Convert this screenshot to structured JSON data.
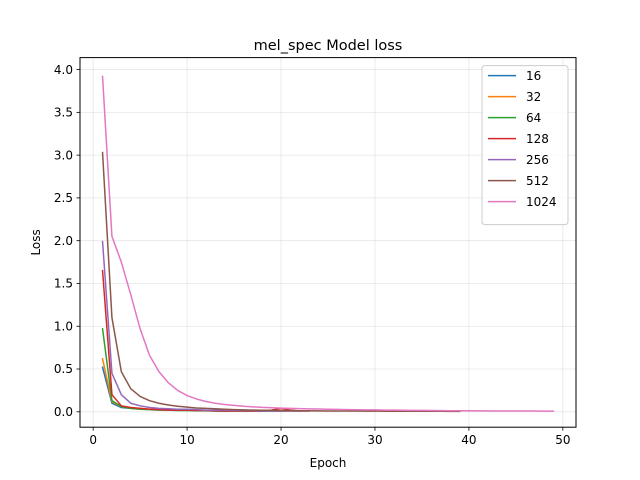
{
  "chart_data": {
    "type": "line",
    "title": "mel_spec Model loss",
    "xlabel": "Epoch",
    "ylabel": "Loss",
    "xlim": [
      -1.4,
      51.4
    ],
    "ylim": [
      -0.18,
      4.14
    ],
    "xticks": [
      "0",
      "10",
      "20",
      "30",
      "40",
      "50"
    ],
    "yticks": [
      "0.0",
      "0.5",
      "1.0",
      "1.5",
      "2.0",
      "2.5",
      "3.0",
      "3.5",
      "4.0"
    ],
    "grid": true,
    "legend_position": "top-right",
    "series": [
      {
        "name": "16",
        "color": "#1f77b4",
        "x": [
          1,
          2,
          3,
          4,
          5,
          6,
          7,
          8,
          9,
          10,
          11,
          12,
          13,
          14,
          15,
          16,
          17,
          18,
          19,
          20
        ],
        "y": [
          0.52,
          0.1,
          0.05,
          0.04,
          0.035,
          0.03,
          0.025,
          0.02,
          0.02,
          0.02,
          0.015,
          0.015,
          0.01,
          0.01,
          0.01,
          0.01,
          0.01,
          0.01,
          0.01,
          0.01
        ]
      },
      {
        "name": "32",
        "color": "#ff7f0e",
        "x": [
          1,
          2,
          3,
          4,
          5,
          6,
          7,
          8,
          9,
          10,
          11,
          12,
          13,
          14,
          15,
          16,
          17,
          18,
          19,
          20,
          21,
          22,
          23
        ],
        "y": [
          0.62,
          0.12,
          0.06,
          0.045,
          0.04,
          0.03,
          0.03,
          0.025,
          0.02,
          0.02,
          0.02,
          0.015,
          0.015,
          0.015,
          0.01,
          0.01,
          0.01,
          0.01,
          0.01,
          0.01,
          0.01,
          0.01,
          0.01
        ]
      },
      {
        "name": "64",
        "color": "#2ca02c",
        "x": [
          1,
          2,
          3,
          4,
          5,
          6,
          7,
          8,
          9,
          10,
          11,
          12,
          13,
          14,
          15,
          16,
          17,
          18,
          19,
          20,
          21,
          22
        ],
        "y": [
          0.97,
          0.13,
          0.06,
          0.04,
          0.03,
          0.025,
          0.02,
          0.02,
          0.015,
          0.015,
          0.012,
          0.012,
          0.01,
          0.01,
          0.01,
          0.01,
          0.01,
          0.008,
          0.01,
          0.01,
          0.012,
          0.01
        ]
      },
      {
        "name": "128",
        "color": "#d62728",
        "x": [
          1,
          2,
          3,
          4,
          5,
          6,
          7,
          8,
          9,
          10,
          11,
          12,
          13,
          14,
          15,
          16,
          17,
          18,
          19,
          20,
          21,
          22
        ],
        "y": [
          1.65,
          0.2,
          0.07,
          0.05,
          0.04,
          0.03,
          0.025,
          0.02,
          0.02,
          0.02,
          0.015,
          0.015,
          0.012,
          0.01,
          0.01,
          0.01,
          0.01,
          0.01,
          0.02,
          0.04,
          0.02,
          0.01
        ]
      },
      {
        "name": "256",
        "color": "#9467bd",
        "x": [
          1,
          2,
          3,
          4,
          5,
          6,
          7,
          8,
          9,
          10,
          11,
          12,
          13,
          14,
          15,
          16,
          17,
          18,
          19,
          20,
          21,
          22,
          23
        ],
        "y": [
          1.99,
          0.45,
          0.2,
          0.1,
          0.07,
          0.05,
          0.04,
          0.035,
          0.03,
          0.03,
          0.025,
          0.02,
          0.02,
          0.02,
          0.015,
          0.015,
          0.015,
          0.01,
          0.01,
          0.01,
          0.01,
          0.01,
          0.01
        ]
      },
      {
        "name": "512",
        "color": "#8c564b",
        "x": [
          1,
          2,
          3,
          4,
          5,
          6,
          7,
          8,
          9,
          10,
          11,
          12,
          13,
          14,
          15,
          16,
          17,
          18,
          19,
          20,
          21,
          22,
          23,
          24,
          25,
          26,
          27,
          28,
          29,
          30,
          31,
          32,
          33,
          34,
          35,
          36,
          37,
          38,
          39
        ],
        "y": [
          3.03,
          1.1,
          0.47,
          0.27,
          0.18,
          0.13,
          0.1,
          0.08,
          0.065,
          0.055,
          0.045,
          0.04,
          0.035,
          0.03,
          0.025,
          0.022,
          0.02,
          0.018,
          0.016,
          0.015,
          0.014,
          0.013,
          0.012,
          0.011,
          0.01,
          0.01,
          0.009,
          0.009,
          0.008,
          0.008,
          0.007,
          0.007,
          0.007,
          0.006,
          0.006,
          0.006,
          0.006,
          0.005,
          0.005
        ]
      },
      {
        "name": "1024",
        "color": "#e377c2",
        "x": [
          1,
          2,
          3,
          4,
          5,
          6,
          7,
          8,
          9,
          10,
          11,
          12,
          13,
          14,
          15,
          16,
          17,
          18,
          19,
          20,
          21,
          22,
          23,
          24,
          25,
          26,
          27,
          28,
          29,
          30,
          31,
          32,
          33,
          34,
          35,
          36,
          37,
          38,
          39,
          40,
          41,
          42,
          43,
          44,
          45,
          46,
          47,
          48,
          49
        ],
        "y": [
          3.92,
          2.05,
          1.75,
          1.37,
          0.97,
          0.66,
          0.47,
          0.34,
          0.25,
          0.19,
          0.15,
          0.12,
          0.1,
          0.085,
          0.075,
          0.065,
          0.058,
          0.052,
          0.047,
          0.043,
          0.04,
          0.037,
          0.034,
          0.032,
          0.03,
          0.028,
          0.026,
          0.024,
          0.023,
          0.022,
          0.02,
          0.019,
          0.018,
          0.017,
          0.016,
          0.015,
          0.014,
          0.013,
          0.013,
          0.012,
          0.011,
          0.011,
          0.01,
          0.01,
          0.009,
          0.009,
          0.009,
          0.008,
          0.008
        ]
      }
    ]
  }
}
